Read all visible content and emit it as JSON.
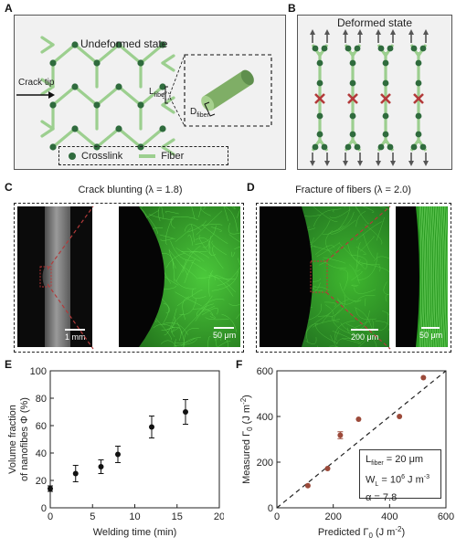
{
  "panels": {
    "a": {
      "letter": "A",
      "title": "Undeformed state",
      "crack_tip": "Crack tip",
      "l_fiber": "L",
      "l_fiber_sub": "fiber",
      "d_fiber": "D",
      "d_fiber_sub": "fiber",
      "legend_crosslink": "Crosslink",
      "legend_fiber": "Fiber"
    },
    "b": {
      "letter": "B",
      "title": "Deformed state"
    },
    "c": {
      "letter": "C",
      "title": "Crack blunting (λ = 1.8)",
      "scale_left": "1 mm",
      "scale_right": "50 μm"
    },
    "d": {
      "letter": "D",
      "title": "Fracture of fibers  (λ = 2.0)",
      "scale_left": "200 μm",
      "scale_right": "50 μm"
    },
    "e": {
      "letter": "E"
    },
    "f": {
      "letter": "F",
      "box_l": "L",
      "box_l_sub": "fiber",
      "box_l_val": " = 20 μm",
      "box_w": "W",
      "box_w_sub": "L",
      "box_w_val": " = 10",
      "box_w_exp": "6",
      "box_w_unit": " J m",
      "box_w_unit_exp": "-3",
      "box_alpha": "α = 7.8"
    }
  },
  "colors": {
    "fiber": "#9ccf8f",
    "crosslink": "#2f6b3d",
    "cross_mark": "#b33a3a",
    "marker_e": "#111111",
    "marker_f": "#9c4a3a",
    "box_bg": "#f1f1f1"
  },
  "chart_data": [
    {
      "panel": "E",
      "type": "scatter",
      "xlabel": "Welding time (min)",
      "ylabel_line1": "Volume fraction",
      "ylabel_line2": "of nanofibes Φ (%)",
      "xlim": [
        0,
        20
      ],
      "ylim": [
        0,
        100
      ],
      "xticks": [
        0,
        5,
        10,
        15,
        20
      ],
      "yticks": [
        0,
        20,
        40,
        60,
        80,
        100
      ],
      "points": [
        {
          "x": 0,
          "y": 14,
          "err": 2
        },
        {
          "x": 3,
          "y": 25,
          "err": 6
        },
        {
          "x": 6,
          "y": 30,
          "err": 5
        },
        {
          "x": 8,
          "y": 39,
          "err": 6
        },
        {
          "x": 12,
          "y": 59,
          "err": 8
        },
        {
          "x": 16,
          "y": 70,
          "err": 9
        }
      ]
    },
    {
      "panel": "F",
      "type": "scatter",
      "xlabel": "Predicted Γ",
      "xlabel_sub": "0",
      "xlabel_unit": " (J m",
      "xlabel_unit_exp": "-2",
      "xlabel_close": ")",
      "ylabel": "Measured Γ",
      "ylabel_sub": "0",
      "ylabel_unit": " (J m",
      "ylabel_unit_exp": "-2",
      "ylabel_close": ")",
      "xlim": [
        0,
        600
      ],
      "ylim": [
        0,
        600
      ],
      "xticks": [
        0,
        200,
        400,
        600
      ],
      "yticks": [
        0,
        200,
        400,
        600
      ],
      "diagonal": "y = x (dashed)",
      "points": [
        {
          "x": 110,
          "y": 97,
          "err": 0
        },
        {
          "x": 180,
          "y": 172,
          "err": 0
        },
        {
          "x": 225,
          "y": 318,
          "err": 15
        },
        {
          "x": 290,
          "y": 388,
          "err": 0
        },
        {
          "x": 435,
          "y": 400,
          "err": 0
        },
        {
          "x": 520,
          "y": 570,
          "err": 0
        }
      ]
    }
  ]
}
